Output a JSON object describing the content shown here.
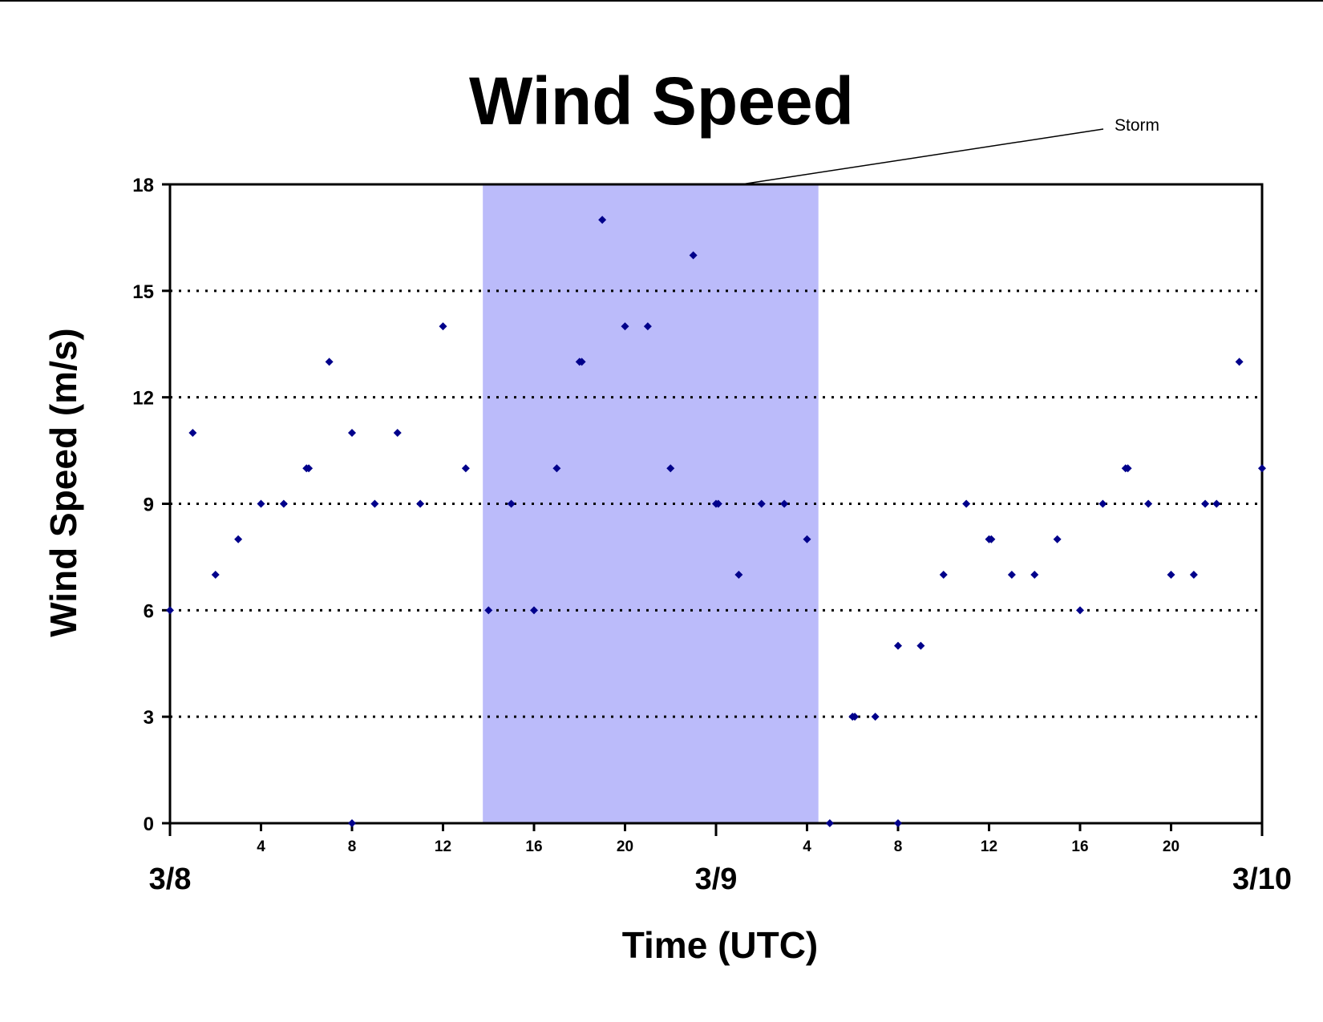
{
  "chart_data": {
    "type": "scatter",
    "title": "Wind Speed",
    "xlabel": "Time (UTC)",
    "ylabel": "Wind Speed (m/s)",
    "ylim": [
      0,
      18
    ],
    "yticks": [
      "0",
      "3",
      "6",
      "9",
      "12",
      "15",
      "18"
    ],
    "xlim": [
      "3/8 00 UTC",
      "3/10 00 UTC"
    ],
    "hour_tick_labels": [
      "4",
      "8",
      "12",
      "16",
      "20",
      "4",
      "8",
      "12",
      "16",
      "20"
    ],
    "date_labels": [
      "3/8",
      "3/9",
      "3/10"
    ],
    "grid": "horizontal dotted",
    "marker_color": "#00008B",
    "storm_color": "#BBBBFA",
    "annotation": {
      "text": "Storm",
      "start": "3/8 13:45 UTC",
      "end": "3/9 04:30 UTC"
    },
    "series": [
      {
        "x": [
          "3/8 00:00",
          "3/8 01:00",
          "3/8 02:00",
          "3/8 03:00",
          "3/8 04:00",
          "3/8 05:00",
          "3/8 06:00",
          "3/8 06:06",
          "3/8 07:00",
          "3/8 08:00",
          "3/8 08:00",
          "3/8 09:00",
          "3/8 10:00",
          "3/8 11:00",
          "3/8 12:00",
          "3/8 13:00",
          "3/8 14:00",
          "3/8 15:00",
          "3/8 16:00",
          "3/8 17:00",
          "3/8 18:00",
          "3/8 18:06",
          "3/8 19:00",
          "3/8 20:00",
          "3/8 21:00",
          "3/8 22:00",
          "3/8 23:00",
          "3/9 00:00",
          "3/9 00:06",
          "3/9 01:00",
          "3/9 02:00",
          "3/9 03:00",
          "3/9 04:00",
          "3/9 05:00",
          "3/9 06:00",
          "3/9 06:06",
          "3/9 07:00",
          "3/9 08:00",
          "3/9 08:00",
          "3/9 09:00",
          "3/9 10:00",
          "3/9 11:00",
          "3/9 12:00",
          "3/9 12:06",
          "3/9 13:00",
          "3/9 14:00",
          "3/9 15:00",
          "3/9 16:00",
          "3/9 17:00",
          "3/9 18:00",
          "3/9 18:06",
          "3/9 19:00",
          "3/9 20:00",
          "3/9 21:00",
          "3/9 21:30",
          "3/9 22:00",
          "3/9 23:00",
          "3/10 00:00"
        ],
        "y": [
          6,
          11,
          7,
          8,
          9,
          9,
          10,
          10,
          13,
          11,
          0,
          9,
          11,
          9,
          14,
          10,
          6,
          9,
          6,
          10,
          13,
          13,
          17,
          14,
          14,
          10,
          16,
          9,
          9,
          7,
          9,
          9,
          8,
          0,
          3,
          3,
          3,
          5,
          0,
          5,
          7,
          9,
          8,
          8,
          7,
          7,
          8,
          6,
          9,
          10,
          10,
          9,
          7,
          7,
          9,
          9,
          13,
          10
        ]
      }
    ]
  }
}
